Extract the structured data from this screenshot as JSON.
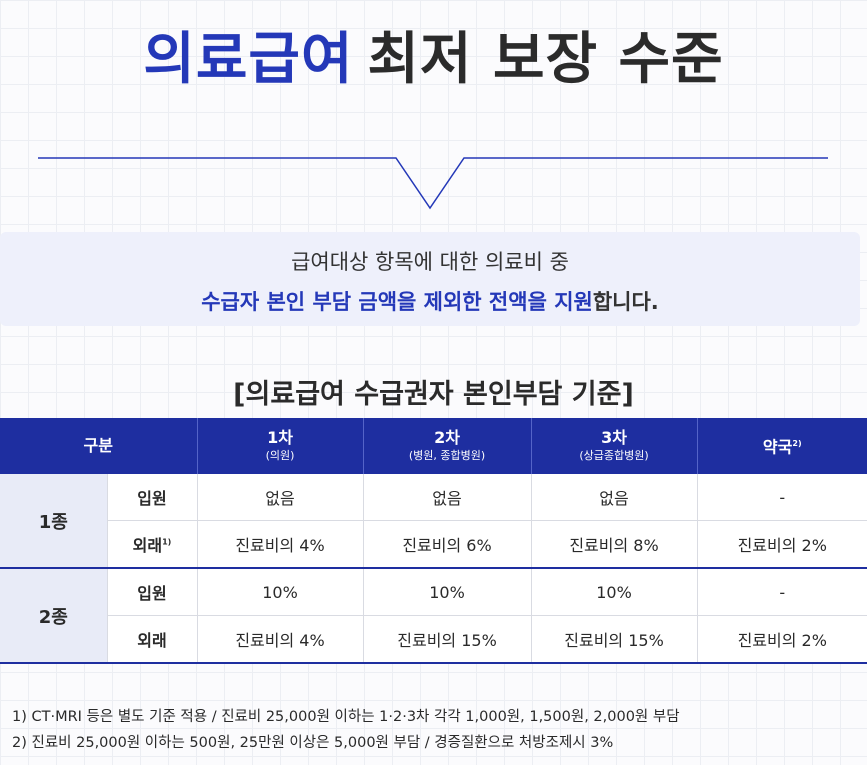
{
  "title": {
    "accent": "의료급여",
    "rest": "최저 보장 수준"
  },
  "intro": {
    "line1": "급여대상 항목에 대한 의료비 중",
    "line2_highlight": "수급자 본인 부담 금액을 제외한 전액을 지원",
    "line2_rest": "합니다."
  },
  "table_title": "[의료급여 수급권자 본인부담 기준]",
  "table": {
    "header": {
      "category": "구분",
      "cols": [
        {
          "main": "1차",
          "sub": "(의원)"
        },
        {
          "main": "2차",
          "sub": "(병원, 종합병원)"
        },
        {
          "main": "3차",
          "sub": "(상급종합병원)"
        },
        {
          "main": "약국",
          "sup": "2)"
        }
      ]
    },
    "groups": [
      {
        "name": "1종",
        "rows": [
          {
            "label": "입원",
            "sup": "",
            "values": [
              "없음",
              "없음",
              "없음",
              "-"
            ]
          },
          {
            "label": "외래",
            "sup": "1)",
            "values": [
              "진료비의 4%",
              "진료비의 6%",
              "진료비의 8%",
              "진료비의 2%"
            ]
          }
        ]
      },
      {
        "name": "2종",
        "rows": [
          {
            "label": "입원",
            "sup": "",
            "values": [
              "10%",
              "10%",
              "10%",
              "-"
            ]
          },
          {
            "label": "외래",
            "sup": "",
            "values": [
              "진료비의 4%",
              "진료비의 15%",
              "진료비의 15%",
              "진료비의 2%"
            ]
          }
        ]
      }
    ]
  },
  "notes": [
    "1) CT·MRI 등은 별도 기준 적용 / 진료비 25,000원 이하는 1·2·3차 각각 1,000원, 1,500원, 2,000원 부담",
    "2) 진료비 25,000원 이하는 500원, 25만원 이상은 5,000원 부담 / 경증질환으로 처방조제시 3%"
  ],
  "colors": {
    "accent": "#2438b8",
    "header_bg": "#1e2ea0",
    "group_bg": "#e8ebf7",
    "intro_bg": "#eef0fb"
  }
}
